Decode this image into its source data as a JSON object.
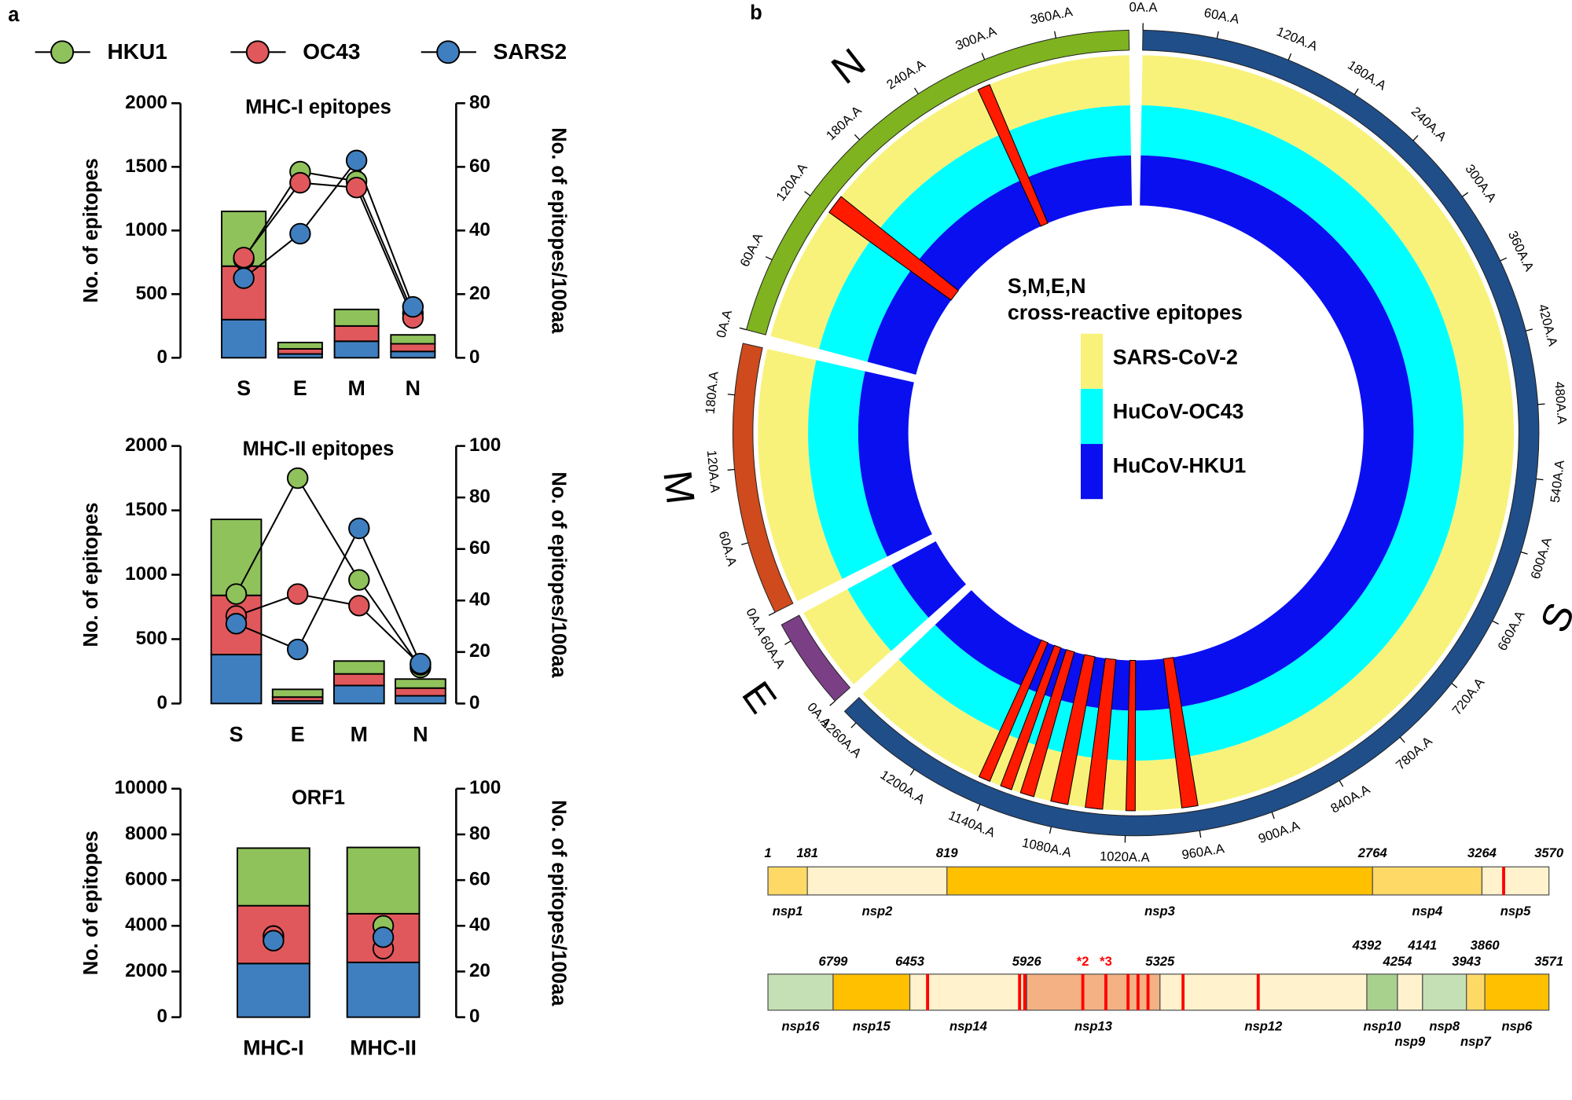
{
  "panel_labels": [
    "a",
    "b"
  ],
  "chart_data": [
    {
      "type": "combo",
      "title": "MHC-I epitopes",
      "categories": [
        "S",
        "E",
        "M",
        "N"
      ],
      "ylabel": "No. of epitopes",
      "y2label": "No. of epitopes/100aa",
      "ylim": [
        0,
        2000
      ],
      "yticks": [
        0,
        500,
        1000,
        1500,
        2000
      ],
      "y2lim": [
        0,
        80
      ],
      "y2ticks": [
        0,
        20,
        40,
        60,
        80
      ],
      "lines": true,
      "series": [
        {
          "name": "HKU1",
          "color": "#8fc25b",
          "values": [
            430,
            50,
            130,
            70
          ],
          "y2_values": [
            31,
            58.5,
            55.5,
            14
          ]
        },
        {
          "name": "OC43",
          "color": "#e0585b",
          "values": [
            420,
            40,
            120,
            60
          ],
          "y2_values": [
            31.5,
            55,
            53.5,
            12.5
          ]
        },
        {
          "name": "SARS2",
          "color": "#3f7fbf",
          "values": [
            300,
            30,
            130,
            50
          ],
          "y2_values": [
            25,
            39,
            62,
            16
          ]
        }
      ]
    },
    {
      "type": "combo",
      "title": "MHC-II epitopes",
      "categories": [
        "S",
        "E",
        "M",
        "N"
      ],
      "ylabel": "No. of epitopes",
      "y2label": "No. of epitopes/100aa",
      "ylim": [
        0,
        2000
      ],
      "yticks": [
        0,
        500,
        1000,
        1500,
        2000
      ],
      "y2lim": [
        0,
        100
      ],
      "y2ticks": [
        0,
        20,
        40,
        60,
        80,
        100
      ],
      "lines": true,
      "series": [
        {
          "color": "#8fc25b",
          "values": [
            590,
            60,
            100,
            70
          ],
          "y2_values": [
            42.5,
            87.5,
            48,
            14
          ]
        },
        {
          "color": "#e0585b",
          "values": [
            460,
            30,
            90,
            60
          ],
          "y2_values": [
            34,
            42.5,
            38,
            15
          ]
        },
        {
          "color": "#3f7fbf",
          "values": [
            380,
            20,
            140,
            60
          ],
          "y2_values": [
            31,
            21,
            68,
            15.5
          ]
        }
      ]
    },
    {
      "type": "combo",
      "title": "ORF1",
      "categories": [
        "MHC-I",
        "MHC-II"
      ],
      "ylabel": "No. of epitopes",
      "y2label": "No. of epitopes/100aa",
      "ylim": [
        0,
        10000
      ],
      "yticks": [
        0,
        2000,
        4000,
        6000,
        8000,
        10000
      ],
      "y2lim": [
        0,
        100
      ],
      "y2ticks": [
        0,
        20,
        40,
        60,
        80,
        100
      ],
      "lines": false,
      "series": [
        {
          "color": "#8fc25b",
          "values": [
            2520,
            2900
          ],
          "y2_values": [
            35.5,
            40
          ]
        },
        {
          "color": "#e0585b",
          "values": [
            2530,
            2130
          ],
          "y2_values": [
            35.5,
            30
          ]
        },
        {
          "color": "#3f7fbf",
          "values": [
            2350,
            2400
          ],
          "y2_values": [
            33.5,
            35
          ]
        }
      ]
    }
  ],
  "circos": {
    "title": [
      "S,M,E,N",
      "cross-reactive epitopes"
    ],
    "rings": [
      {
        "name": "SARS-CoV-2",
        "color": "#f8f27a"
      },
      {
        "name": "HuCoV-OC43",
        "color": "#00ffff"
      },
      {
        "name": "HuCoV-HKU1",
        "color": "#0a0ff0"
      }
    ],
    "epitope_color": "#ff1a00",
    "segments": [
      {
        "name": "S",
        "length": 1273,
        "color": "#1f4e89",
        "ticks": [
          {
            "value": 0,
            "label": "0A.A"
          },
          {
            "value": 60,
            "label": "60A.A"
          },
          {
            "value": 120,
            "label": "120A.A"
          },
          {
            "value": 180,
            "label": "180A.A"
          },
          {
            "value": 240,
            "label": "240A.A"
          },
          {
            "value": 300,
            "label": "300A.A"
          },
          {
            "value": 360,
            "label": "360A.A"
          },
          {
            "value": 420,
            "label": "420A.A"
          },
          {
            "value": 480,
            "label": "480A.A"
          },
          {
            "value": 540,
            "label": "540A.A"
          },
          {
            "value": 600,
            "label": "600A.A"
          },
          {
            "value": 660,
            "label": "660A.A"
          },
          {
            "value": 720,
            "label": "720A.A"
          },
          {
            "value": 780,
            "label": "780A.A"
          },
          {
            "value": 840,
            "label": "840A.A"
          },
          {
            "value": 900,
            "label": "900A.A"
          },
          {
            "value": 960,
            "label": "960A.A"
          },
          {
            "value": 1020,
            "label": "1020A.A"
          },
          {
            "value": 1080,
            "label": "1080A.A"
          },
          {
            "value": 1140,
            "label": "1140A.A"
          },
          {
            "value": 1200,
            "label": "1200A.A"
          },
          {
            "value": 1260,
            "label": "1260A.A"
          }
        ]
      },
      {
        "name": "E",
        "length": 75,
        "color": "#7b3f86",
        "ticks": [
          {
            "value": 0,
            "label": "0A.A"
          },
          {
            "value": 60,
            "label": "60A.A"
          }
        ]
      },
      {
        "name": "M",
        "length": 222,
        "color": "#cf4a1c",
        "ticks": [
          {
            "value": 0,
            "label": "0A.A"
          },
          {
            "value": 60,
            "label": "60A.A"
          },
          {
            "value": 120,
            "label": "120A.A"
          },
          {
            "value": 180,
            "label": "180A.A"
          }
        ]
      },
      {
        "name": "N",
        "length": 419,
        "color": "#7fb31f",
        "ticks": [
          {
            "value": 0,
            "label": "0A.A"
          },
          {
            "value": 60,
            "label": "60A.A"
          },
          {
            "value": 120,
            "label": "120A.A"
          },
          {
            "value": 180,
            "label": "180A.A"
          },
          {
            "value": 240,
            "label": "240A.A"
          },
          {
            "value": 300,
            "label": "300A.A"
          },
          {
            "value": 360,
            "label": "360A.A"
          }
        ]
      }
    ],
    "epitopes": [
      {
        "segment": 3,
        "start": 118,
        "end": 135
      },
      {
        "segment": 3,
        "start": 285,
        "end": 296
      },
      {
        "segment": 0,
        "start": 958,
        "end": 972
      },
      {
        "segment": 0,
        "start": 1012,
        "end": 1020
      },
      {
        "segment": 0,
        "start": 1040,
        "end": 1055
      },
      {
        "segment": 0,
        "start": 1070,
        "end": 1085
      },
      {
        "segment": 0,
        "start": 1100,
        "end": 1112
      },
      {
        "segment": 0,
        "start": 1120,
        "end": 1130
      },
      {
        "segment": 0,
        "start": 1140,
        "end": 1150
      }
    ]
  },
  "genome": {
    "bars": [
      {
        "boundaries": [
          1,
          181,
          819,
          2764,
          3264,
          3570
        ],
        "segments": [
          {
            "name": "nsp1",
            "color": "#ffd966"
          },
          {
            "name": "nsp2",
            "color": "#fff2cc"
          },
          {
            "name": "nsp3",
            "color": "#ffc000"
          },
          {
            "name": "nsp4",
            "color": "#ffd966"
          },
          {
            "name": "nsp5",
            "color": "#fff2cc"
          }
        ],
        "marks": [
          3363
        ]
      },
      {
        "boundaries": [
          6799,
          6453,
          5926,
          5325,
          4392,
          4254,
          4141,
          3943,
          3860,
          3571
        ],
        "segments": [
          {
            "name": "nsp16",
            "color": "#c5e0b4"
          },
          {
            "name": "nsp15",
            "color": "#ffc000"
          },
          {
            "name": "nsp14",
            "color": "#fff2cc"
          },
          {
            "name": "nsp13",
            "color": "#f4b183"
          },
          {
            "name": "nsp12",
            "color": "#fff2cc"
          },
          {
            "name": "nsp10",
            "color": "#a9d18e"
          },
          {
            "name": "nsp9",
            "color": "#fff2cc"
          },
          {
            "name": "nsp8",
            "color": "#c5e0b4"
          },
          {
            "name": "nsp7",
            "color": "#ffd966"
          },
          {
            "name": "nsp6",
            "color": "#ffc000"
          }
        ],
        "marks": [
          6373,
          5958,
          5935,
          {
            "value": 5673,
            "label": "*2"
          },
          {
            "value": 5569,
            "label": "*3"
          },
          5469,
          5424,
          5379,
          5221,
          4882
        ]
      }
    ]
  }
}
